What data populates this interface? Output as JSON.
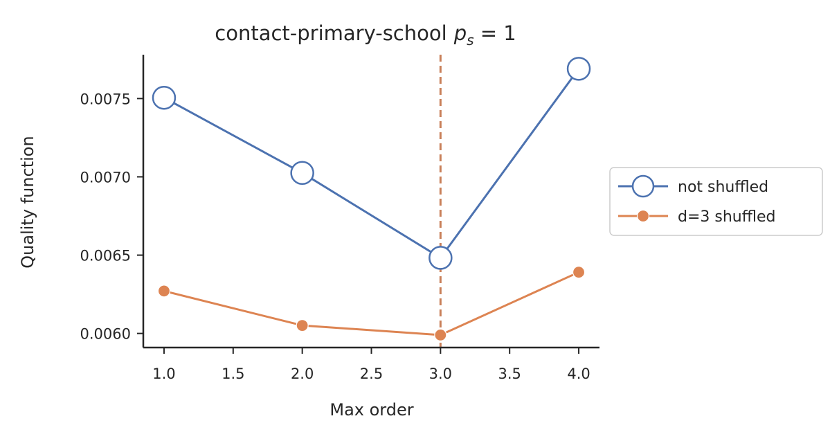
{
  "chart_data": {
    "type": "line",
    "title": "contact-primary-school",
    "title_math": "p",
    "title_math_sub": "s",
    "title_math_tail": " = 1",
    "xlabel": "Max order",
    "ylabel": "Quality function",
    "x": [
      1.0,
      2.0,
      3.0,
      4.0
    ],
    "xlim": [
      0.85,
      4.15
    ],
    "ylim": [
      0.00591,
      0.00778
    ],
    "xticks": [
      1.0,
      1.5,
      2.0,
      2.5,
      3.0,
      3.5,
      4.0
    ],
    "xtick_labels": [
      "1.0",
      "1.5",
      "2.0",
      "2.5",
      "3.0",
      "3.5",
      "4.0"
    ],
    "yticks": [
      0.006,
      0.0065,
      0.007,
      0.0075
    ],
    "ytick_labels": [
      "0.0060",
      "0.0065",
      "0.0070",
      "0.0075"
    ],
    "vline": {
      "x": 3.0,
      "style": "dashed",
      "color": "#c9805a"
    },
    "grid": false,
    "legend_position": "outside-right",
    "series": [
      {
        "name": "not shuffled",
        "values": [
          0.007505,
          0.007025,
          0.006483,
          0.00769
        ],
        "color": "#4c72b0",
        "marker": "open-circle"
      },
      {
        "name": "d=3 shuffled",
        "values": [
          0.006271,
          0.006051,
          0.00599,
          0.006391
        ],
        "color": "#dd8452",
        "marker": "filled-circle"
      }
    ]
  }
}
